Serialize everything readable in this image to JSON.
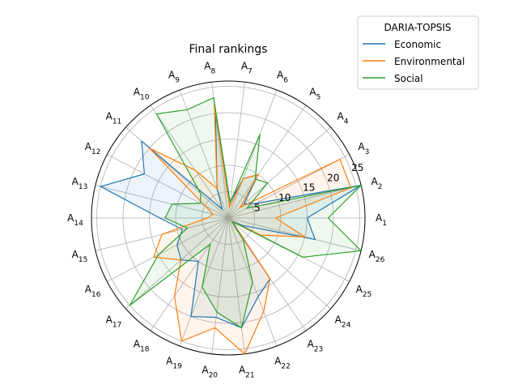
{
  "chart_data": {
    "type": "radar",
    "title": "Final rankings",
    "categories": [
      "A1",
      "A2",
      "A3",
      "A4",
      "A5",
      "A6",
      "A7",
      "A8",
      "A9",
      "A10",
      "A11",
      "A12",
      "A13",
      "A14",
      "A15",
      "A16",
      "A17",
      "A18",
      "A19",
      "A20",
      "A21",
      "A22",
      "A23",
      "A24",
      "A25",
      "A26"
    ],
    "category_labels": [
      {
        "base": "A",
        "sub": "1"
      },
      {
        "base": "A",
        "sub": "2"
      },
      {
        "base": "A",
        "sub": "3"
      },
      {
        "base": "A",
        "sub": "4"
      },
      {
        "base": "A",
        "sub": "5"
      },
      {
        "base": "A",
        "sub": "6"
      },
      {
        "base": "A",
        "sub": "7"
      },
      {
        "base": "A",
        "sub": "8"
      },
      {
        "base": "A",
        "sub": "9"
      },
      {
        "base": "A",
        "sub": "10"
      },
      {
        "base": "A",
        "sub": "11"
      },
      {
        "base": "A",
        "sub": "12"
      },
      {
        "base": "A",
        "sub": "13"
      },
      {
        "base": "A",
        "sub": "14"
      },
      {
        "base": "A",
        "sub": "15"
      },
      {
        "base": "A",
        "sub": "16"
      },
      {
        "base": "A",
        "sub": "17"
      },
      {
        "base": "A",
        "sub": "18"
      },
      {
        "base": "A",
        "sub": "19"
      },
      {
        "base": "A",
        "sub": "20"
      },
      {
        "base": "A",
        "sub": "21"
      },
      {
        "base": "A",
        "sub": "22"
      },
      {
        "base": "A",
        "sub": "23"
      },
      {
        "base": "A",
        "sub": "24"
      },
      {
        "base": "A",
        "sub": "25"
      },
      {
        "base": "A",
        "sub": "26"
      }
    ],
    "rlim": [
      0,
      26
    ],
    "rticks": [
      5,
      10,
      15,
      20,
      25
    ],
    "rtick_labels": [
      "5",
      "10",
      "15",
      "20",
      "25"
    ],
    "grid": true,
    "legend": {
      "title": "DARIA-TOPSIS",
      "placement": "upper-right-outside"
    },
    "series": [
      {
        "name": "Economic",
        "color": "#1f77b4",
        "values": [
          15,
          26,
          6,
          4,
          10,
          8,
          3,
          20,
          6,
          2,
          22,
          18,
          25,
          13,
          9,
          11,
          12,
          10,
          20,
          19,
          21,
          16,
          14,
          1,
          3,
          17
        ]
      },
      {
        "name": "Environmental",
        "color": "#ff7f0e",
        "values": [
          9,
          24,
          24,
          3,
          10,
          8,
          2,
          22,
          6,
          11,
          20,
          5,
          3,
          4,
          13,
          16,
          12,
          18,
          25,
          21,
          26,
          19,
          14,
          1,
          7,
          15
        ]
      },
      {
        "name": "Social",
        "color": "#2ca02c",
        "values": [
          19,
          26,
          4,
          10,
          9,
          17,
          3,
          23,
          22,
          24,
          7,
          6,
          11,
          12,
          8,
          15,
          25,
          6,
          14,
          18,
          21,
          13,
          5,
          1,
          16,
          26
        ]
      }
    ]
  }
}
